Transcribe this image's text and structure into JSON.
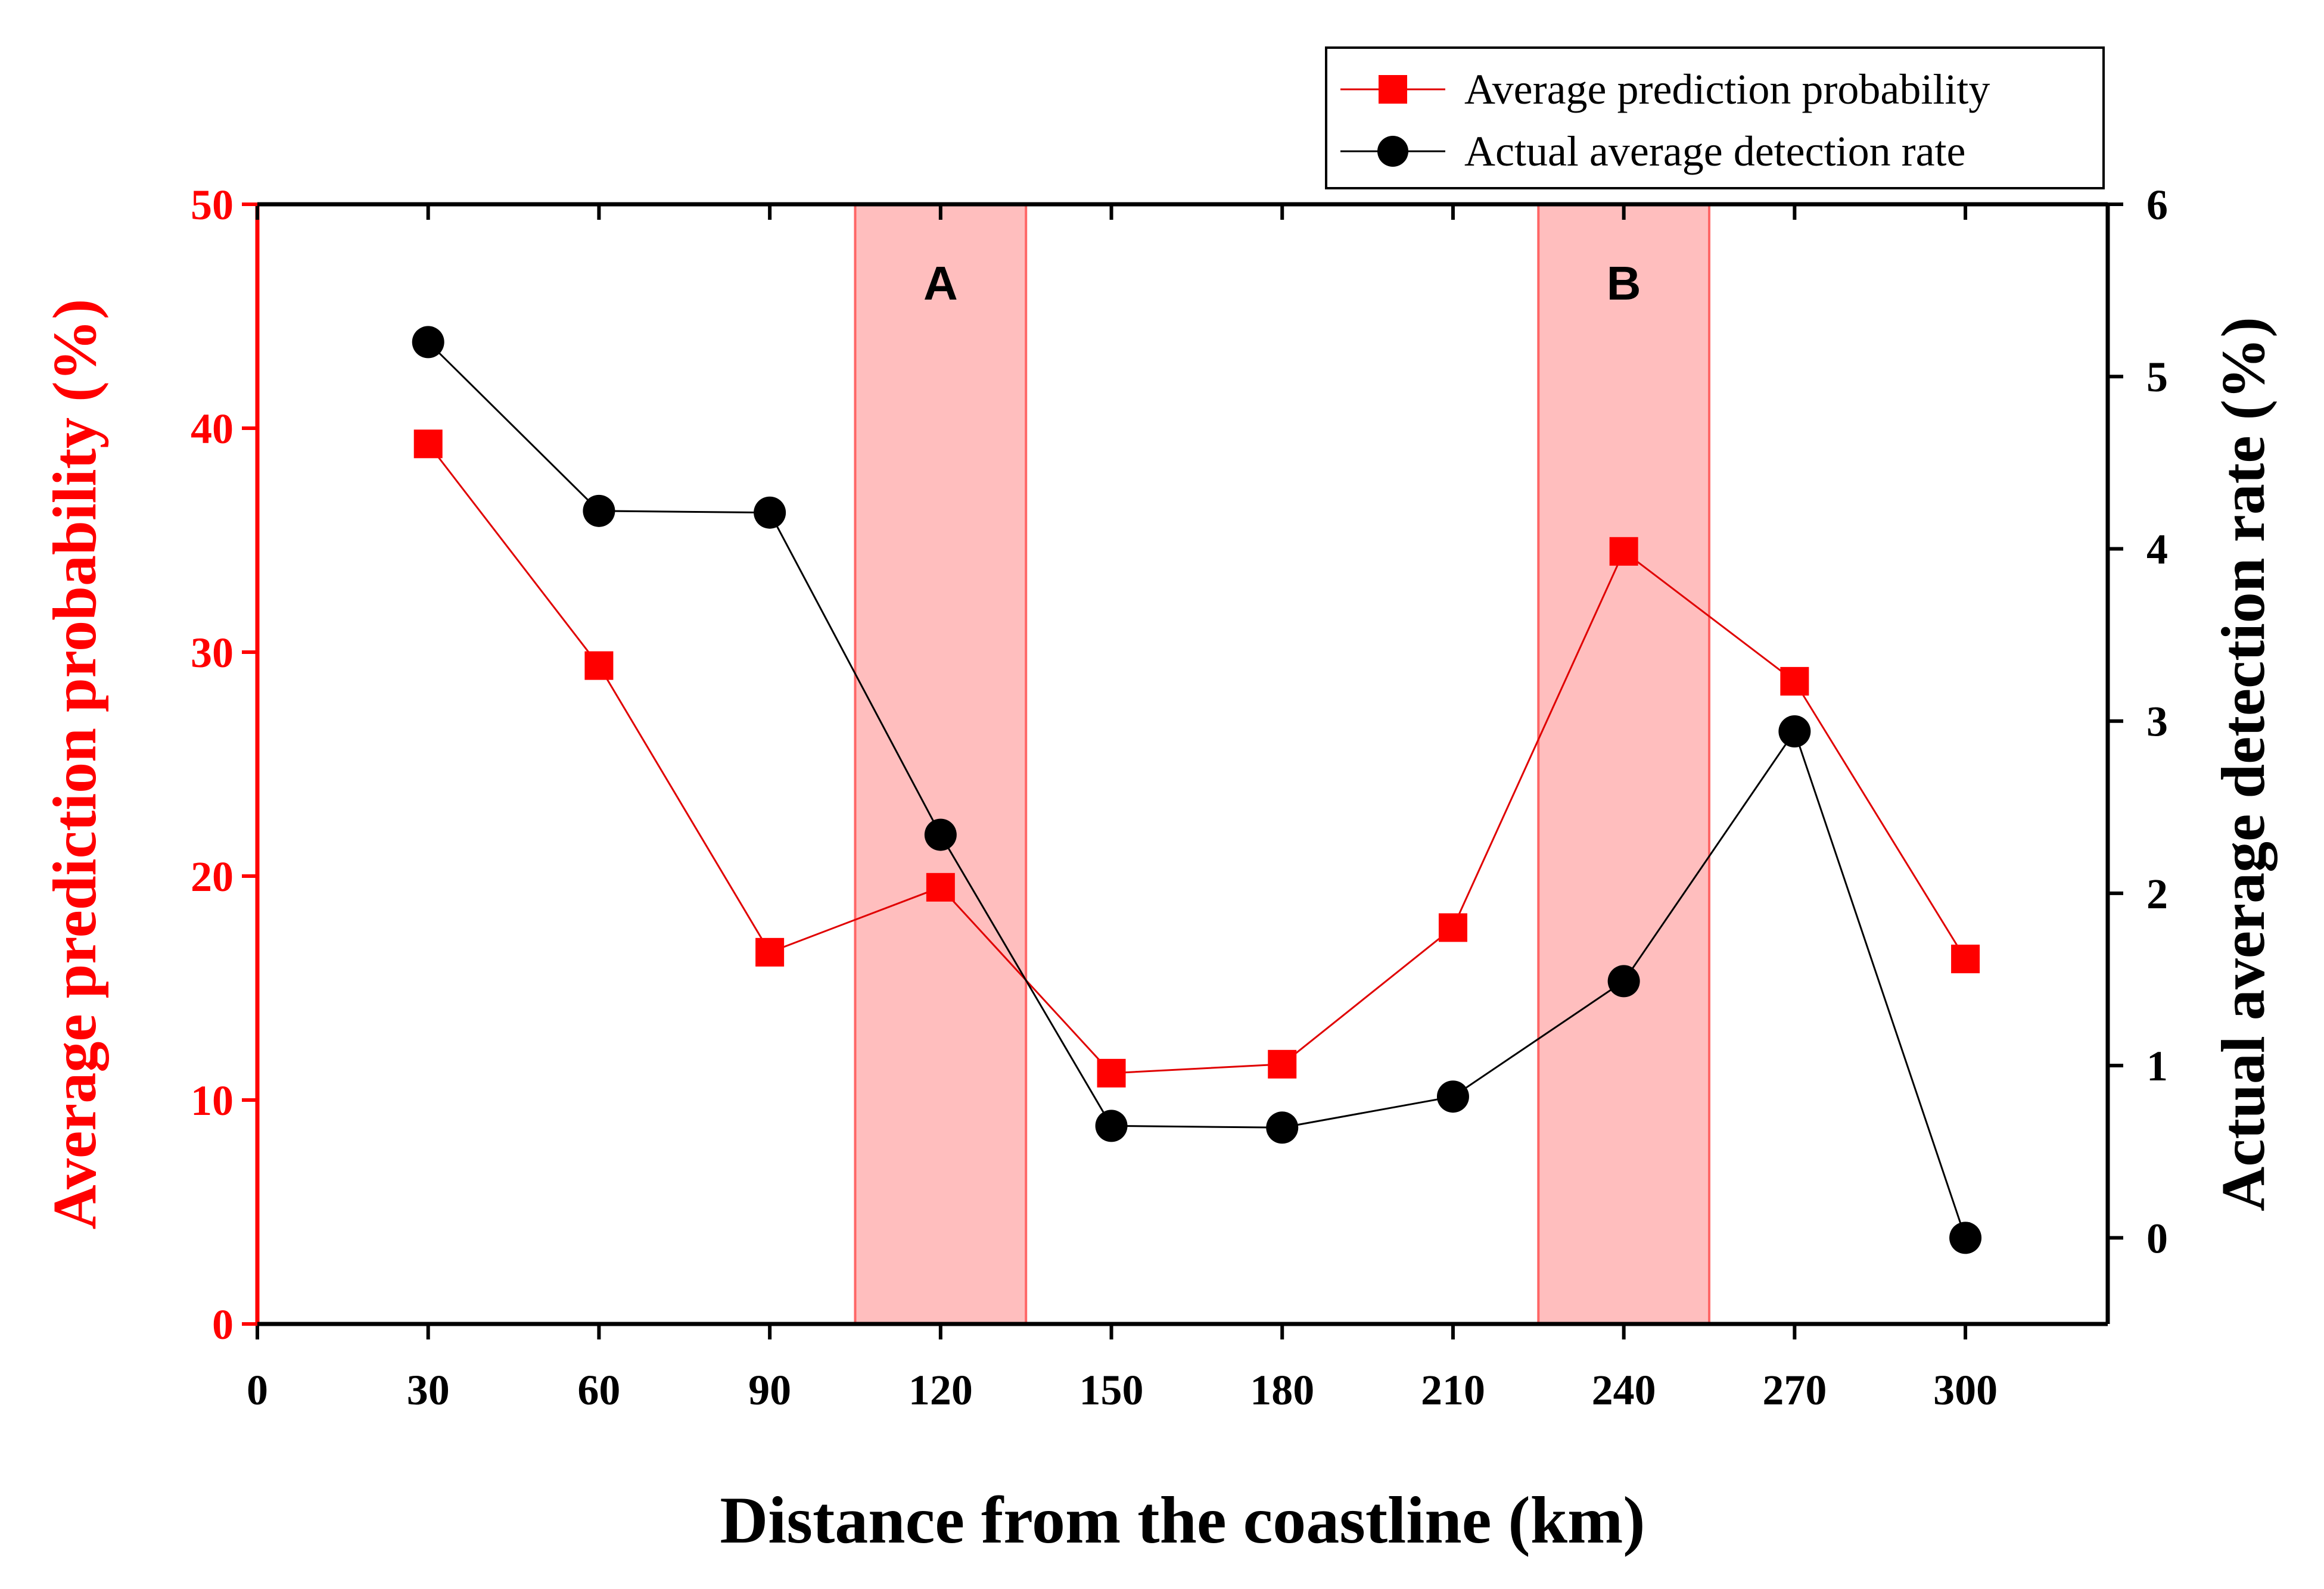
{
  "chart_data": {
    "type": "line",
    "title": "",
    "x": [
      30,
      60,
      90,
      120,
      150,
      180,
      210,
      240,
      270,
      300
    ],
    "xlim": [
      0,
      325
    ],
    "xticks": [
      "0",
      "30",
      "60",
      "90",
      "120",
      "150",
      "180",
      "210",
      "240",
      "270",
      "300"
    ],
    "xlabel": "Distance from the coastline (km)",
    "left_axis": {
      "label": "Average prediction probability (%)",
      "ylim": [
        0,
        50
      ],
      "ticks": [
        "0",
        "10",
        "20",
        "30",
        "40",
        "50"
      ],
      "color": "#ff0000"
    },
    "right_axis": {
      "label": "Actual average detection rate (%)",
      "ylim": [
        -0.5,
        6
      ],
      "ticks": [
        "0",
        "1",
        "2",
        "3",
        "4",
        "5",
        "6"
      ],
      "color": "#000000"
    },
    "series": [
      {
        "name": "Average prediction probability",
        "axis": "left",
        "marker": "square",
        "color": "#ff0000",
        "values": [
          39.3,
          29.4,
          16.6,
          19.5,
          11.2,
          11.6,
          17.7,
          34.5,
          28.7,
          16.3
        ]
      },
      {
        "name": "Actual average detection rate",
        "axis": "right",
        "marker": "circle",
        "color": "#000000",
        "values": [
          5.2,
          4.22,
          4.21,
          2.34,
          0.65,
          0.64,
          0.82,
          1.49,
          2.94,
          0.0
        ]
      }
    ],
    "highlight_regions": [
      {
        "label": "A",
        "x_range": [
          105,
          135
        ],
        "color": "#ff8888"
      },
      {
        "label": "B",
        "x_range": [
          225,
          255
        ],
        "color": "#ff8888"
      }
    ],
    "legend": {
      "position": "top-right",
      "entries": [
        "Average prediction probability",
        "Actual average detection rate"
      ]
    }
  }
}
